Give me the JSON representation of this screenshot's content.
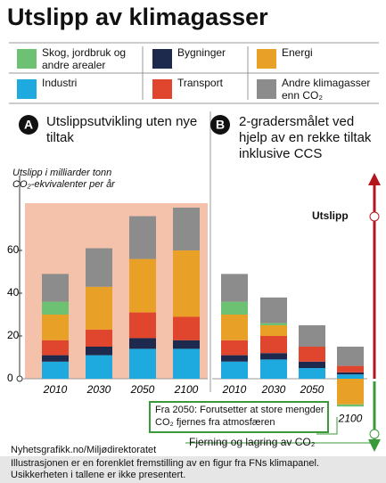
{
  "title": "Utslipp av klimagasser",
  "chart_data": [
    {
      "type": "stacked-bar",
      "label": "A",
      "title": "Utslippsutvikling uten nye tiltak",
      "y_label": "Utslipp i milliarder tonn CO₂-ekvivalenter per år",
      "categories": [
        "2010",
        "2030",
        "2050",
        "2100"
      ],
      "ylim": [
        0,
        95
      ],
      "yticks": [
        0,
        20,
        40,
        60
      ],
      "series": [
        {
          "name": "Industri",
          "color": "#1ea9df",
          "values": [
            8,
            11,
            14,
            14
          ]
        },
        {
          "name": "Bygninger",
          "color": "#1d2a4e",
          "values": [
            3,
            4,
            5,
            4
          ]
        },
        {
          "name": "Transport",
          "color": "#e0452e",
          "values": [
            7,
            8,
            12,
            11
          ]
        },
        {
          "name": "Energi",
          "color": "#e9a027",
          "values": [
            12,
            20,
            25,
            31
          ]
        },
        {
          "name": "Skog, jordbruk og andre arealer",
          "color": "#6cc172",
          "values": [
            6,
            0,
            0,
            0
          ]
        },
        {
          "name": "Andre klimagasser enn CO₂",
          "color": "#8c8c8c",
          "values": [
            13,
            18,
            20,
            20
          ]
        }
      ]
    },
    {
      "type": "stacked-bar",
      "label": "B",
      "title": "2-gradersmålet ved hjelp av en rekke tiltak inklusive CCS",
      "categories": [
        "2010",
        "2030",
        "2050",
        "2100"
      ],
      "ylim": [
        -30,
        95
      ],
      "series": [
        {
          "name": "Industri",
          "color": "#1ea9df",
          "values": [
            8,
            9,
            5,
            2
          ]
        },
        {
          "name": "Bygninger",
          "color": "#1d2a4e",
          "values": [
            3,
            3,
            3,
            1
          ]
        },
        {
          "name": "Transport",
          "color": "#e0452e",
          "values": [
            7,
            8,
            7,
            3
          ]
        },
        {
          "name": "Energi",
          "color": "#e9a027",
          "values": [
            12,
            5,
            0,
            -12
          ]
        },
        {
          "name": "Skog, jordbruk og andre arealer",
          "color": "#6cc172",
          "values": [
            6,
            1,
            0,
            -1
          ]
        },
        {
          "name": "Andre klimagasser enn CO₂",
          "color": "#8c8c8c",
          "values": [
            13,
            12,
            10,
            9
          ]
        }
      ],
      "annotations": [
        "Utslipp",
        "Fra 2050: Forutsetter at store mengder CO₂ fjernes fra atmosfæren",
        "Fjerning og lagring av CO₂"
      ]
    }
  ],
  "source": "Nyhetsgrafikk.no/Miljødirektoratet",
  "footnote": "Illustrasjonen  er en forenklet fremstilling av en figur fra FNs klimapanel. Usikkerheten i tallene er ikke presentert."
}
